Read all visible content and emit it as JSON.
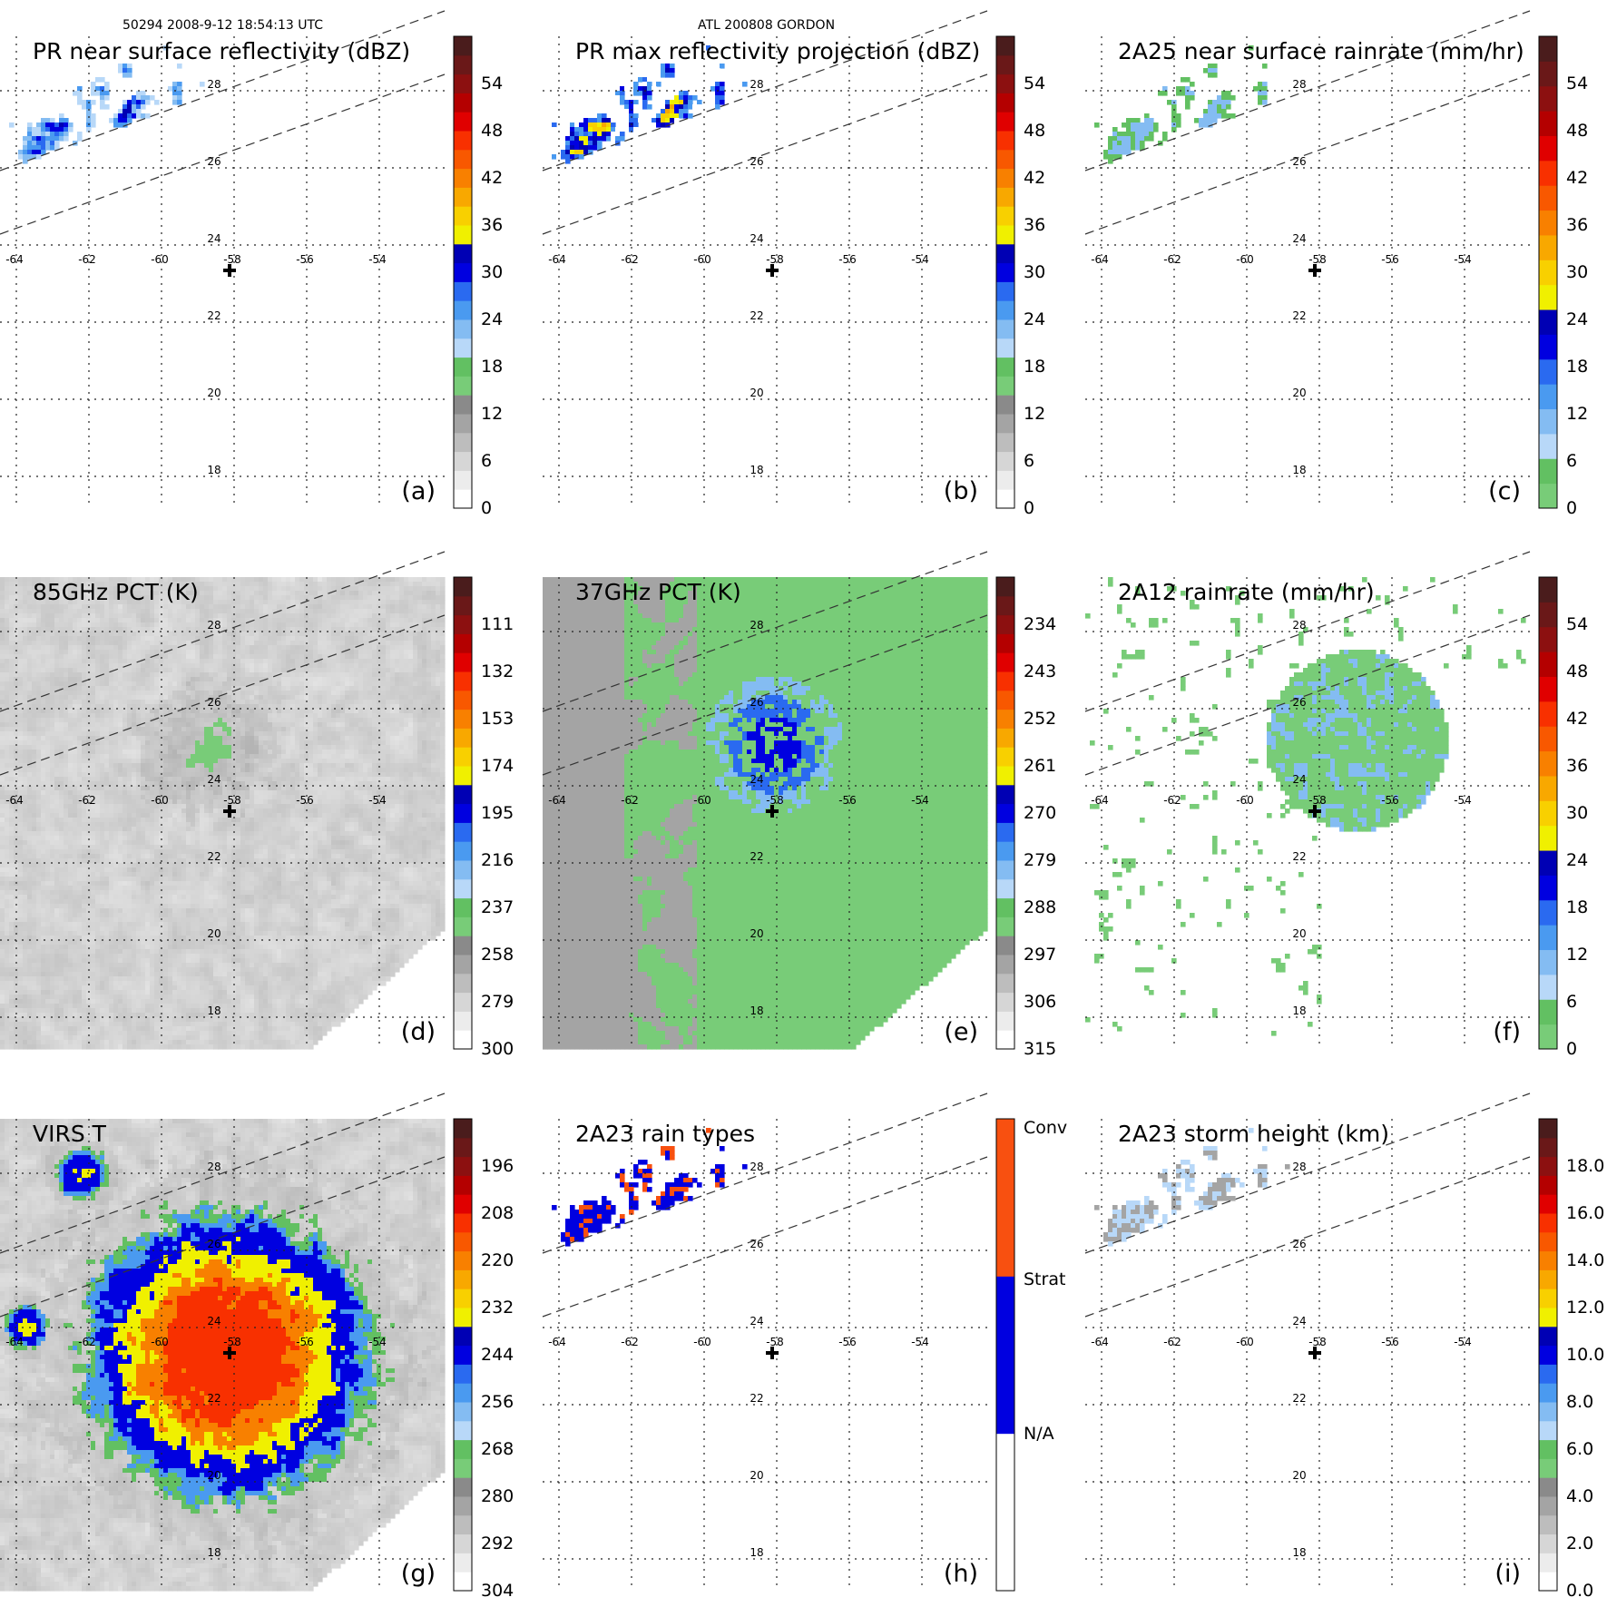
{
  "header": {
    "left": "50294 2008-9-12 18:54:13 UTC",
    "center": "ATL 200808 GORDON"
  },
  "grid": {
    "lon_ticks": [
      "-64",
      "-62",
      "-60",
      "-58",
      "-56",
      "-54"
    ],
    "lat_ticks": [
      "28",
      "26",
      "24",
      "22",
      "20",
      "18"
    ]
  },
  "palettes": {
    "pr": [
      "#ffffff",
      "#ececec",
      "#d6d6d6",
      "#bdbdbd",
      "#a4a4a4",
      "#8a8a8a",
      "#78cc78",
      "#62c062",
      "#b8d8f8",
      "#84bcf2",
      "#4a9af0",
      "#2a6af0",
      "#0000e0",
      "#0000b4",
      "#f0f000",
      "#f8d000",
      "#f8a800",
      "#f88000",
      "#f85800",
      "#f83000",
      "#e00000",
      "#b40000",
      "#8c1010",
      "#6a1818",
      "#4a1c1c"
    ],
    "pct": [
      "#ffffff",
      "#ececec",
      "#d6d6d6",
      "#bdbdbd",
      "#a4a4a4",
      "#8a8a8a",
      "#78cc78",
      "#62c062",
      "#b8d8f8",
      "#84bcf2",
      "#4a9af0",
      "#2a6af0",
      "#0000e0",
      "#0000b4",
      "#f0f000",
      "#f8d000",
      "#f8a800",
      "#f88000",
      "#f85800",
      "#f83000",
      "#e00000",
      "#b40000",
      "#8c1010",
      "#6a1818",
      "#4a1c1c"
    ],
    "rain": [
      "#78cc78",
      "#62c062",
      "#b8d8f8",
      "#84bcf2",
      "#4a9af0",
      "#2a6af0",
      "#0000e0",
      "#0000b4",
      "#f0f000",
      "#f8d000",
      "#f8a800",
      "#f88000",
      "#f85800",
      "#f83000",
      "#e00000",
      "#b40000",
      "#8c1010",
      "#6a1818",
      "#4a1c1c"
    ],
    "types": [
      "#ffffff",
      "#0000e0",
      "#f85010"
    ],
    "height": [
      "#ffffff",
      "#ececec",
      "#d6d6d6",
      "#bdbdbd",
      "#a4a4a4",
      "#8a8a8a",
      "#78cc78",
      "#62c062",
      "#b8d8f8",
      "#84bcf2",
      "#4a9af0",
      "#2a6af0",
      "#0000e0",
      "#0000b4",
      "#f0f000",
      "#f8d000",
      "#f8a800",
      "#f88000",
      "#f85800",
      "#f83000",
      "#e00000",
      "#b40000",
      "#8c1010",
      "#6a1818",
      "#4a1c1c"
    ]
  },
  "panels": [
    {
      "id": "a",
      "title": "PR near surface reflectivity (dBZ)",
      "label": "(a)",
      "palette": "pr",
      "field": "pr_nsr",
      "colorbar_labels": [
        "54",
        "48",
        "42",
        "36",
        "30",
        "24",
        "18",
        "12",
        "6",
        "0"
      ]
    },
    {
      "id": "b",
      "title": "PR max reflectivity projection (dBZ)",
      "label": "(b)",
      "palette": "pr",
      "field": "pr_max",
      "colorbar_labels": [
        "54",
        "48",
        "42",
        "36",
        "30",
        "24",
        "18",
        "12",
        "6",
        "0"
      ]
    },
    {
      "id": "c",
      "title": "2A25 near surface rainrate (mm/hr)",
      "label": "(c)",
      "palette": "rain",
      "field": "pr_rain",
      "colorbar_labels": [
        "54",
        "48",
        "42",
        "36",
        "30",
        "24",
        "18",
        "12",
        "6",
        "0"
      ]
    },
    {
      "id": "d",
      "title": "85GHz PCT (K)",
      "label": "(d)",
      "palette": "pct",
      "field": "pct85",
      "colorbar_labels": [
        "111",
        "132",
        "153",
        "174",
        "195",
        "216",
        "237",
        "258",
        "279",
        "300"
      ]
    },
    {
      "id": "e",
      "title": "37GHz PCT (K)",
      "label": "(e)",
      "palette": "pct",
      "field": "pct37",
      "colorbar_labels": [
        "234",
        "243",
        "252",
        "261",
        "270",
        "279",
        "288",
        "297",
        "306",
        "315"
      ]
    },
    {
      "id": "f",
      "title": "2A12 rainrate (mm/hr)",
      "label": "(f)",
      "palette": "rain",
      "field": "tmi_rain",
      "colorbar_labels": [
        "54",
        "48",
        "42",
        "36",
        "30",
        "24",
        "18",
        "12",
        "6",
        "0"
      ]
    },
    {
      "id": "g",
      "title": "VIRS T",
      "label": "(g)",
      "palette": "pct",
      "field": "virs",
      "colorbar_labels": [
        "196",
        "208",
        "220",
        "232",
        "244",
        "256",
        "268",
        "280",
        "292",
        "304"
      ]
    },
    {
      "id": "h",
      "title": "2A23 rain types",
      "label": "(h)",
      "palette": "types",
      "field": "types",
      "colorbar_labels": [
        "Conv",
        "Strat",
        "N/A"
      ]
    },
    {
      "id": "i",
      "title": "2A23 storm height (km)",
      "label": "(i)",
      "palette": "height",
      "field": "height",
      "colorbar_labels": [
        "18.0",
        "16.0",
        "14.0",
        "12.0",
        "10.0",
        "8.0",
        "6.0",
        "4.0",
        "2.0",
        "0.0"
      ]
    }
  ]
}
